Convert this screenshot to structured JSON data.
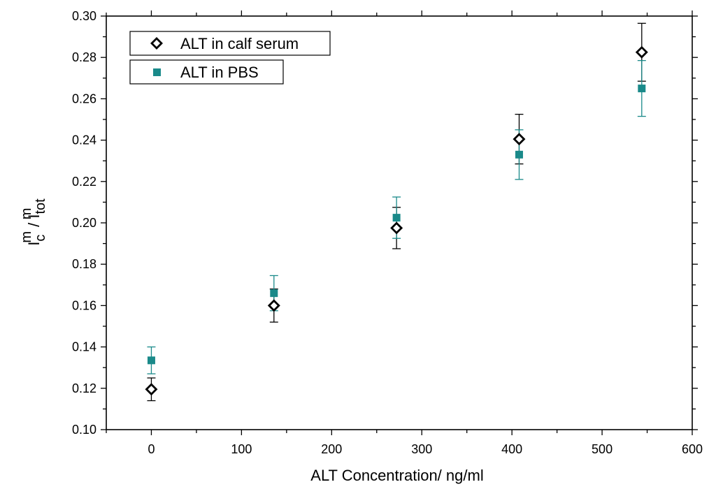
{
  "chart_data": {
    "type": "scatter",
    "title": "",
    "xlabel": "ALT Concentration/ ng/ml",
    "ylabel": {
      "main1": "I",
      "sup1": "m",
      "sub1": "c",
      "sep": " / I",
      "sup2": "m",
      "sub2": "tot"
    },
    "xlim": [
      -50,
      600
    ],
    "ylim": [
      0.1,
      0.3
    ],
    "x_ticks": [
      0,
      100,
      200,
      300,
      400,
      500,
      600
    ],
    "y_ticks": [
      "0.10",
      "0.12",
      "0.14",
      "0.16",
      "0.18",
      "0.20",
      "0.22",
      "0.24",
      "0.26",
      "0.28",
      "0.30"
    ],
    "grid": false,
    "legend_position": "top-left",
    "series": [
      {
        "name": "ALT in calf serum",
        "marker": "open-diamond",
        "color": "#000000",
        "x": [
          0,
          136,
          272,
          408,
          544
        ],
        "y": [
          0.1195,
          0.16,
          0.1975,
          0.2405,
          0.2825
        ],
        "err": [
          0.0055,
          0.008,
          0.01,
          0.012,
          0.014
        ]
      },
      {
        "name": "ALT in PBS",
        "marker": "filled-square",
        "color": "#1a8a8a",
        "x": [
          0,
          136,
          272,
          408,
          544
        ],
        "y": [
          0.1335,
          0.166,
          0.2025,
          0.233,
          0.265
        ],
        "err": [
          0.0065,
          0.0085,
          0.01,
          0.012,
          0.0135
        ]
      }
    ]
  }
}
